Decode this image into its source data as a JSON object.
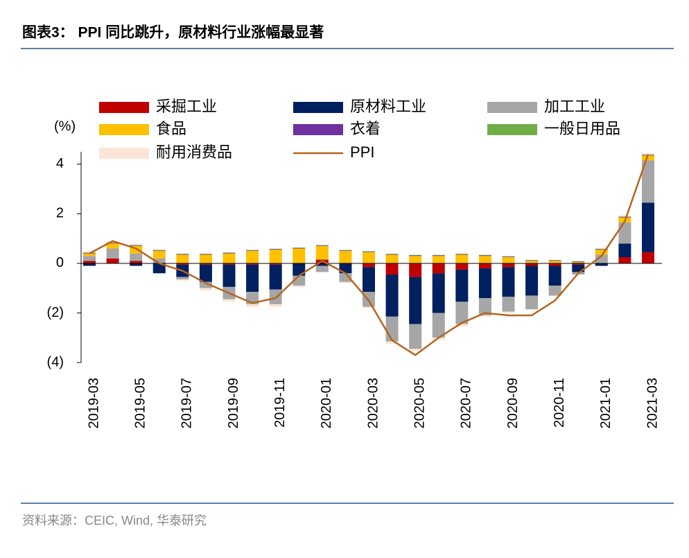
{
  "chart_data": {
    "type": "stacked-bar-line",
    "title": "图表3：  PPI 同比跳升，原材料行业涨幅最显著",
    "y_label": "(%)",
    "source": "资料来源：CEIC, Wind, 华泰研究",
    "categories": [
      "2019-03",
      null,
      "2019-05",
      null,
      "2019-07",
      null,
      "2019-09",
      null,
      "2019-11",
      null,
      "2020-01",
      null,
      "2020-03",
      null,
      "2020-05",
      null,
      "2020-07",
      null,
      "2020-09",
      null,
      "2020-11",
      null,
      "2021-01",
      null,
      "2021-03"
    ],
    "ylim": [
      -4,
      4.5
    ],
    "yticks": [
      {
        "value": -4,
        "label": "(4)"
      },
      {
        "value": -2,
        "label": "(2)"
      },
      0,
      2,
      4
    ],
    "series": [
      {
        "name": "采掘工业",
        "color": "#c00000",
        "values": [
          0.1,
          0.2,
          0.1,
          0.0,
          -0.05,
          -0.05,
          -0.05,
          -0.05,
          -0.05,
          0.0,
          0.15,
          0.0,
          -0.15,
          -0.45,
          -0.55,
          -0.4,
          -0.25,
          -0.2,
          -0.15,
          -0.1,
          -0.1,
          -0.05,
          0.0,
          0.25,
          0.45
        ]
      },
      {
        "name": "原材料工业",
        "color": "#002060",
        "values": [
          -0.1,
          0.0,
          -0.1,
          -0.4,
          -0.5,
          -0.7,
          -0.9,
          -1.1,
          -1.0,
          -0.5,
          -0.1,
          -0.4,
          -1.0,
          -1.7,
          -1.9,
          -1.6,
          -1.3,
          -1.2,
          -1.2,
          -1.2,
          -0.8,
          -0.3,
          -0.1,
          0.55,
          2.0
        ]
      },
      {
        "name": "加工工业",
        "color": "#a6a6a6",
        "values": [
          0.2,
          0.4,
          0.3,
          0.2,
          -0.1,
          -0.25,
          -0.5,
          -0.5,
          -0.6,
          -0.4,
          -0.25,
          -0.35,
          -0.6,
          -1.0,
          -1.0,
          -1.0,
          -0.9,
          -0.7,
          -0.6,
          -0.55,
          -0.4,
          -0.1,
          0.35,
          0.85,
          1.7
        ]
      },
      {
        "name": "食品",
        "color": "#ffc000",
        "values": [
          0.1,
          0.2,
          0.3,
          0.3,
          0.35,
          0.35,
          0.4,
          0.5,
          0.55,
          0.6,
          0.55,
          0.5,
          0.45,
          0.35,
          0.3,
          0.3,
          0.35,
          0.3,
          0.25,
          0.1,
          0.1,
          0.05,
          0.2,
          0.2,
          0.2
        ]
      },
      {
        "name": "衣着",
        "color": "#7030a0",
        "values": [
          0.02,
          0.02,
          0.02,
          0.02,
          0.02,
          0.02,
          0.02,
          0.02,
          0.02,
          0.02,
          0.02,
          0.02,
          0.02,
          0.02,
          0.02,
          0.02,
          0.02,
          0.02,
          0.02,
          0.02,
          0.02,
          0.02,
          0.02,
          0.02,
          0.02
        ]
      },
      {
        "name": "一般日用品",
        "color": "#70ad47",
        "values": [
          0.02,
          0.02,
          0.02,
          0.02,
          0.02,
          0.02,
          0.02,
          0.02,
          0.02,
          0.02,
          0.02,
          0.02,
          0.02,
          0.02,
          0.02,
          0.02,
          0.02,
          0.02,
          0.02,
          0.02,
          0.02,
          0.02,
          0.02,
          0.02,
          0.02
        ]
      },
      {
        "name": "耐用消费品",
        "color": "#fbe5d6",
        "values": [
          0.05,
          0.05,
          0.05,
          0.03,
          -0.05,
          -0.1,
          -0.1,
          -0.1,
          -0.1,
          -0.05,
          0.0,
          -0.05,
          -0.05,
          -0.1,
          -0.1,
          -0.1,
          -0.1,
          -0.05,
          -0.05,
          -0.03,
          -0.03,
          0.0,
          0.02,
          0.05,
          0.05
        ]
      }
    ],
    "line": {
      "name": "PPI",
      "color": "#b5651d",
      "values": [
        0.4,
        0.9,
        0.6,
        0.0,
        -0.3,
        -0.8,
        -1.2,
        -1.6,
        -1.4,
        -0.5,
        0.1,
        -0.4,
        -1.5,
        -3.1,
        -3.7,
        -3.0,
        -2.4,
        -2.0,
        -2.1,
        -2.1,
        -1.5,
        -0.4,
        0.3,
        1.7,
        4.4
      ]
    }
  }
}
